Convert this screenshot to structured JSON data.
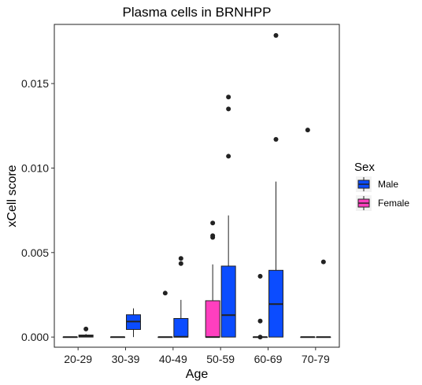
{
  "chart_data": {
    "type": "boxplot",
    "title": "Plasma cells in BRNHPP",
    "xlabel": "Age",
    "ylabel": "xCell score",
    "ylim": [
      -0.0006,
      0.0185
    ],
    "yticks": [
      0.0,
      0.005,
      0.01,
      0.015
    ],
    "ytick_labels": [
      "0.000",
      "0.005",
      "0.010",
      "0.015"
    ],
    "categories": [
      "20-29",
      "30-39",
      "40-49",
      "50-59",
      "60-69",
      "70-79"
    ],
    "legend": {
      "title": "Sex",
      "position": "right",
      "entries": [
        {
          "name": "Male",
          "color": "#0b4cff"
        },
        {
          "name": "Female",
          "color": "#ff3fbf"
        }
      ]
    },
    "series": [
      {
        "name": "Female",
        "color": "#ff3fbf",
        "boxes": [
          {
            "category": "20-29",
            "min": 0.0,
            "q1": 0.0,
            "median": 0.0,
            "q3": 0.0,
            "max": 0.0,
            "outliers": []
          },
          {
            "category": "30-39",
            "min": 0.0,
            "q1": 0.0,
            "median": 0.0,
            "q3": 0.0,
            "max": 0.0,
            "outliers": []
          },
          {
            "category": "40-49",
            "min": 0.0,
            "q1": 0.0,
            "median": 0.0,
            "q3": 0.0,
            "max": 0.0,
            "outliers": [
              0.0026
            ]
          },
          {
            "category": "50-59",
            "min": 0.0,
            "q1": 0.0,
            "median": 0.0,
            "q3": 0.00215,
            "max": 0.0043,
            "outliers": [
              0.0059,
              0.006,
              0.00675
            ]
          },
          {
            "category": "60-69",
            "min": 0.0,
            "q1": 0.0,
            "median": 0.0,
            "q3": 0.0,
            "max": 0.0,
            "outliers": [
              0.0,
              0.00095,
              0.0036
            ]
          },
          {
            "category": "70-79",
            "min": 0.0,
            "q1": 0.0,
            "median": 0.0,
            "q3": 0.0,
            "max": 0.0,
            "outliers": [
              0.01225
            ]
          }
        ]
      },
      {
        "name": "Male",
        "color": "#0b4cff",
        "boxes": [
          {
            "category": "20-29",
            "min": 0.0,
            "q1": 0.0,
            "median": 5e-05,
            "q3": 0.00012,
            "max": 0.00018,
            "outliers": [
              0.00048
            ]
          },
          {
            "category": "30-39",
            "min": 0.0,
            "q1": 0.00045,
            "median": 0.00092,
            "q3": 0.00132,
            "max": 0.0017,
            "outliers": []
          },
          {
            "category": "40-49",
            "min": 0.0,
            "q1": 0.0,
            "median": 2e-05,
            "q3": 0.0011,
            "max": 0.0022,
            "outliers": [
              0.00435,
              0.00465
            ]
          },
          {
            "category": "50-59",
            "min": 0.0,
            "q1": 0.0,
            "median": 0.0013,
            "q3": 0.0042,
            "max": 0.0072,
            "outliers": [
              0.0107,
              0.0135,
              0.0142
            ]
          },
          {
            "category": "60-69",
            "min": 0.0,
            "q1": 0.0,
            "median": 0.00195,
            "q3": 0.00395,
            "max": 0.0092,
            "outliers": [
              0.0117,
              0.01785
            ]
          },
          {
            "category": "70-79",
            "min": 0.0,
            "q1": 0.0,
            "median": 0.0,
            "q3": 0.0,
            "max": 0.0,
            "outliers": [
              0.00445
            ]
          }
        ]
      }
    ],
    "grid": false
  }
}
